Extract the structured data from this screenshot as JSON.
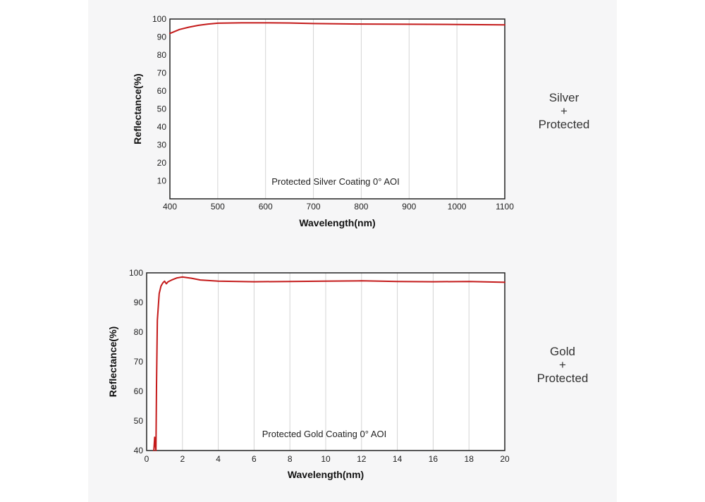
{
  "chart_data": [
    {
      "type": "line",
      "title": "Protected Silver Coating  0°  AOI",
      "xlabel": "Wavelength(nm)",
      "ylabel": "Reflectance(%)",
      "xlim": [
        400,
        1100
      ],
      "ylim": [
        0,
        100
      ],
      "xticks": [
        400,
        500,
        600,
        700,
        800,
        900,
        1000,
        1100
      ],
      "yticks": [
        10,
        20,
        30,
        40,
        50,
        60,
        70,
        80,
        90,
        100
      ],
      "grid": "vertical",
      "line_color": "#c41a1a",
      "series": [
        {
          "x": [
            400,
            420,
            440,
            460,
            480,
            500,
            550,
            600,
            650,
            700,
            800,
            900,
            1000,
            1100
          ],
          "y": [
            92,
            94.2,
            95.5,
            96.5,
            97.2,
            97.7,
            97.9,
            97.9,
            97.8,
            97.5,
            97.2,
            97.1,
            97.0,
            96.8
          ]
        }
      ],
      "side_label": [
        "Silver",
        "+",
        "Protected"
      ]
    },
    {
      "type": "line",
      "title": "Protected Gold Coating  0°  AOI",
      "xlabel": "Wavelength(nm)",
      "ylabel": "Reflectance(%)",
      "xlim": [
        0,
        20
      ],
      "ylim": [
        40,
        100
      ],
      "xticks": [
        0,
        2,
        4,
        6,
        8,
        10,
        12,
        14,
        16,
        18,
        20
      ],
      "yticks": [
        40,
        50,
        60,
        70,
        80,
        90,
        100
      ],
      "grid": "vertical",
      "line_color": "#c41a1a",
      "series": [
        {
          "x": [
            0.4,
            0.45,
            0.5,
            0.52,
            0.55,
            0.6,
            0.7,
            0.8,
            0.9,
            1.0,
            1.1,
            1.2,
            1.4,
            1.7,
            2.0,
            2.5,
            3.0,
            4.0,
            6.0,
            8.0,
            10.0,
            12.0,
            14.0,
            16.0,
            18.0,
            20.0
          ],
          "y": [
            40,
            44.5,
            41,
            40,
            62,
            84,
            93,
            95.5,
            96.6,
            97.2,
            96.3,
            97.0,
            97.6,
            98.3,
            98.6,
            98.2,
            97.6,
            97.2,
            97.0,
            97.1,
            97.2,
            97.3,
            97.1,
            97.0,
            97.1,
            96.8
          ]
        }
      ],
      "side_label": [
        "Gold",
        "+",
        "Protected"
      ]
    }
  ]
}
